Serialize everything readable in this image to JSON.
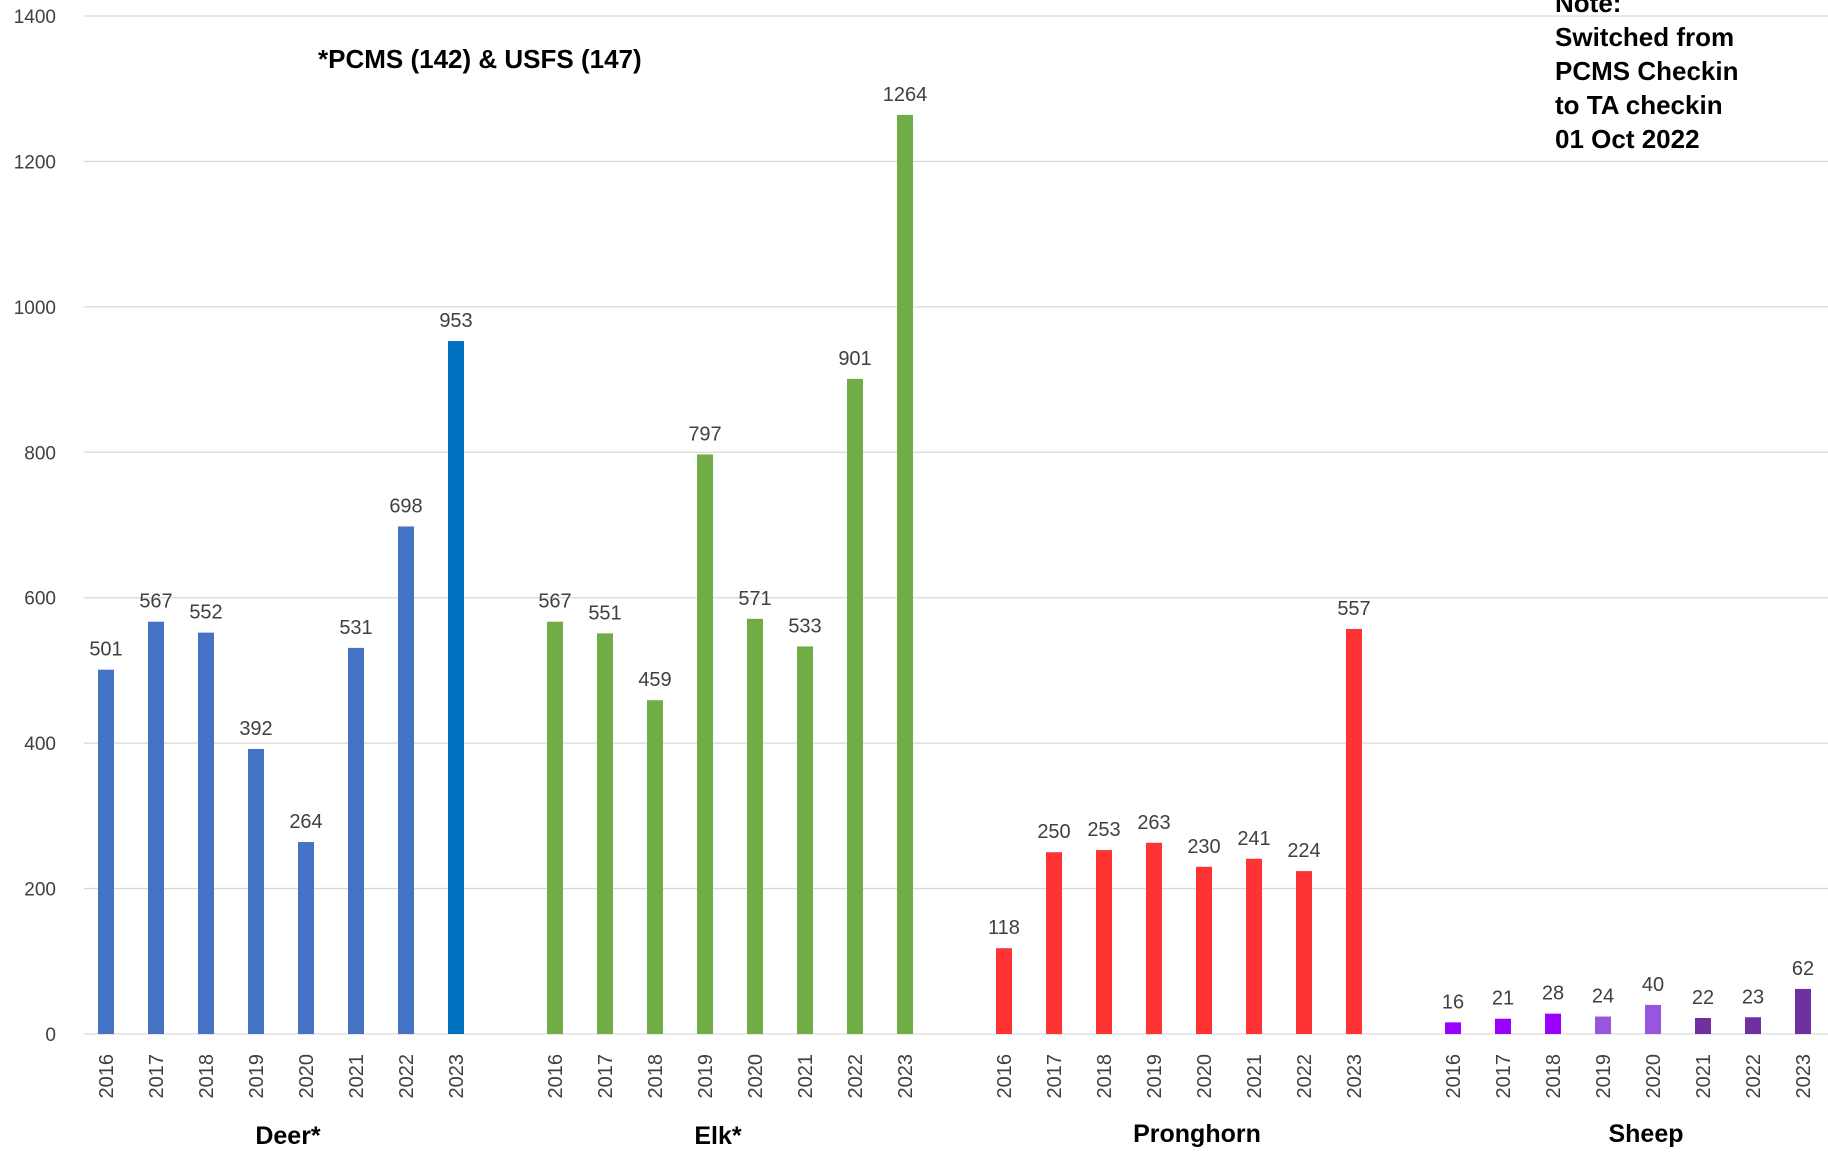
{
  "chart_data": {
    "type": "bar",
    "ylim": [
      0,
      1400
    ],
    "yticks": [
      0,
      200,
      400,
      600,
      800,
      1000,
      1200,
      1400
    ],
    "grid": true,
    "groups": [
      {
        "name": "Deer*",
        "categories": [
          "2016",
          "2017",
          "2018",
          "2019",
          "2020",
          "2021",
          "2022",
          "2023"
        ],
        "values": [
          501,
          567,
          552,
          392,
          264,
          531,
          698,
          953
        ],
        "colors": [
          "#4472C4",
          "#4472C4",
          "#4472C4",
          "#4472C4",
          "#4472C4",
          "#4472C4",
          "#4472C4",
          "#0070C0"
        ]
      },
      {
        "name": "Elk*",
        "categories": [
          "2016",
          "2017",
          "2018",
          "2019",
          "2020",
          "2021",
          "2022",
          "2023"
        ],
        "values": [
          567,
          551,
          459,
          797,
          571,
          533,
          901,
          1264
        ],
        "colors": [
          "#70AD47",
          "#70AD47",
          "#70AD47",
          "#70AD47",
          "#70AD47",
          "#70AD47",
          "#70AD47",
          "#70AD47"
        ]
      },
      {
        "name": "Pronghorn",
        "categories": [
          "2016",
          "2017",
          "2018",
          "2019",
          "2020",
          "2021",
          "2022",
          "2023"
        ],
        "values": [
          118,
          250,
          253,
          263,
          230,
          241,
          224,
          557
        ],
        "colors": [
          "#FF3333",
          "#FF3333",
          "#FF3333",
          "#FF3333",
          "#FF3333",
          "#FF3333",
          "#FF3333",
          "#FF3333"
        ]
      },
      {
        "name": "Sheep",
        "categories": [
          "2016",
          "2017",
          "2018",
          "2019",
          "2020",
          "2021",
          "2022",
          "2023"
        ],
        "values": [
          16,
          21,
          28,
          24,
          40,
          22,
          23,
          62
        ],
        "colors": [
          "#9900FF",
          "#9900FF",
          "#9900FF",
          "#9955DD",
          "#9955DD",
          "#7030A0",
          "#7030A0",
          "#7030A0"
        ]
      }
    ],
    "annotations": [
      "*PCMS (142) & USFS (147)",
      "Note:",
      "Switched from",
      "PCMS Checkin",
      "to TA checkin",
      "01 Oct 2022"
    ]
  }
}
